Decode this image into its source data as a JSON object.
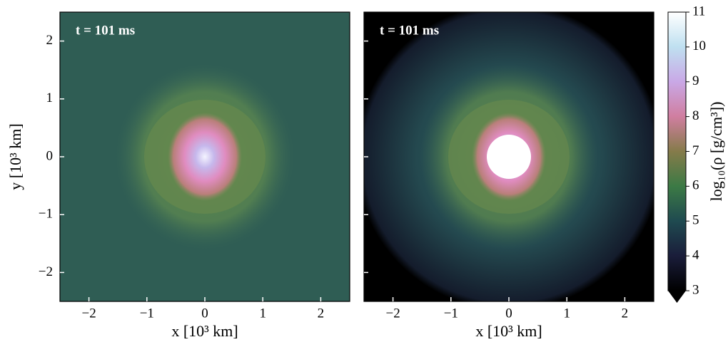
{
  "chart_data": [
    {
      "type": "heatmap",
      "annotation": "t = 101 ms",
      "xlabel": "x [10³ km]",
      "ylabel": "y [10³ km]",
      "xlim": [
        -2.5,
        2.5
      ],
      "ylim": [
        -2.5,
        2.5
      ],
      "xticks": [
        {
          "value": -2,
          "label": "−2"
        },
        {
          "value": -1,
          "label": "−1"
        },
        0,
        1,
        2
      ],
      "yticks": [
        {
          "value": -2,
          "label": "−2"
        },
        {
          "value": -1,
          "label": "−1"
        },
        0,
        1,
        2
      ]
    },
    {
      "type": "heatmap",
      "annotation": "t = 101 ms",
      "xlabel": "x [10³ km]",
      "xlim": [
        -2.5,
        2.5
      ],
      "ylim": [
        -2.5,
        2.5
      ],
      "xticks": [
        {
          "value": -2,
          "label": "−2"
        },
        {
          "value": -1,
          "label": "−1"
        },
        0,
        1,
        2
      ],
      "yticks": [
        -2,
        -1,
        0,
        1,
        2
      ],
      "colorbar": {
        "label": "log₁₀(ρ [g/cm³])",
        "lim": [
          3,
          11
        ],
        "ticks": [
          3,
          4,
          5,
          6,
          7,
          8,
          9,
          10,
          11
        ]
      }
    }
  ]
}
